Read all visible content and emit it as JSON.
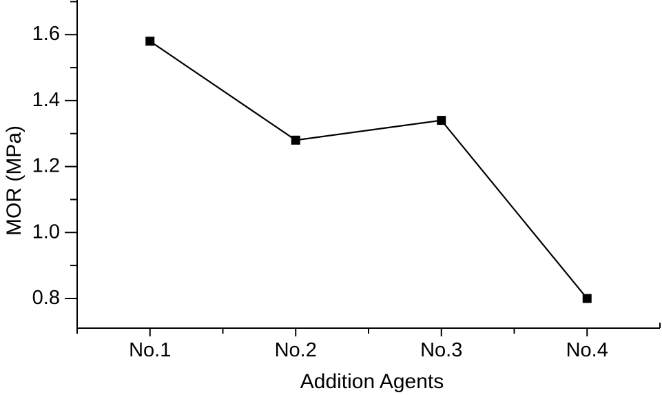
{
  "chart_data": {
    "type": "line",
    "title": "",
    "xlabel": "Addition Agents",
    "ylabel": "MOR (MPa)",
    "categories": [
      "No.1",
      "No.2",
      "No.3",
      "No.4"
    ],
    "series": [
      {
        "name": "MOR",
        "values": [
          1.58,
          1.28,
          1.34,
          0.8
        ]
      }
    ],
    "ylim": [
      0.71,
      1.705
    ],
    "y_major_ticks": [
      0.8,
      1.0,
      1.2,
      1.4,
      1.6
    ],
    "y_tick_labels": [
      "0.8",
      "1.0",
      "1.2",
      "1.4",
      "1.6"
    ],
    "y_minor_ticks": [
      0.9,
      1.1,
      1.3,
      1.5,
      1.7
    ],
    "grid": false,
    "legend": "none",
    "marker": "filled-square",
    "marker_size": 13,
    "colors": {
      "foreground": "#000000",
      "background": "#ffffff"
    }
  }
}
